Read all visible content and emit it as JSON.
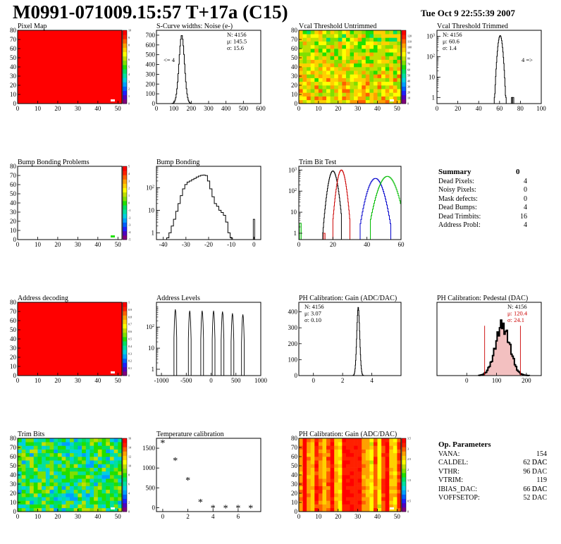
{
  "header": {
    "title": "M0991-071009.15:57 T+17a (C15)",
    "date": "Tue Oct  9 22:55:39 2007"
  },
  "summary": {
    "title": "Summary",
    "total": "0",
    "rows": [
      {
        "label": "Dead Pixels:",
        "value": "4"
      },
      {
        "label": "Noisy Pixels:",
        "value": "0"
      },
      {
        "label": "Mask defects:",
        "value": "0"
      },
      {
        "label": "Dead Bumps:",
        "value": "4"
      },
      {
        "label": "Dead Trimbits:",
        "value": "16"
      },
      {
        "label": "Address Probl:",
        "value": "4"
      }
    ]
  },
  "op_parameters": {
    "title": "Op. Parameters",
    "rows": [
      {
        "label": "VANA:",
        "value": "154 DAC"
      },
      {
        "label": "CALDEL:",
        "value": "62 DAC"
      },
      {
        "label": "VTHR:",
        "value": "96 DAC"
      },
      {
        "label": "VTRIM:",
        "value": "119 DAC"
      },
      {
        "label": "IBIAS_DAC:",
        "value": "66 DAC"
      },
      {
        "label": "VOFFSETOP:",
        "value": "52 DAC"
      }
    ]
  },
  "chart_data": [
    {
      "id": "pixel-map",
      "type": "heatmap",
      "title": "Pixel Map",
      "xlim": [
        0,
        52
      ],
      "ylim": [
        0,
        80
      ],
      "xticks": [
        0,
        10,
        20,
        30,
        40,
        50
      ],
      "yticks": [
        0,
        10,
        20,
        30,
        40,
        50,
        60,
        70,
        80
      ],
      "fill_color": "#ff0000",
      "colorbar": {
        "min": 0,
        "max": 10,
        "ticks": [
          0,
          1,
          2,
          3,
          4,
          5,
          6,
          7,
          8,
          9,
          10
        ]
      }
    },
    {
      "id": "scurve-noise",
      "type": "histogram",
      "title": "S-Curve widths: Noise (e-)",
      "xlim": [
        0,
        600
      ],
      "ylim": [
        0,
        750
      ],
      "xticks": [
        0,
        100,
        200,
        300,
        400,
        500,
        600
      ],
      "yticks": [
        0,
        100,
        200,
        300,
        400,
        500,
        600,
        700
      ],
      "stats": [
        "N: 4156",
        "μ: 145.5",
        "σ: 15.6"
      ],
      "annotation": "<= 4",
      "series": [
        {
          "color": "#000000",
          "mean": 145.5,
          "sigma": 15.6,
          "peak": 700,
          "x_from": 80,
          "x_to": 240
        }
      ]
    },
    {
      "id": "vcal-untrimmed",
      "type": "heatmap",
      "title": "Vcal Threshold Untrimmed",
      "xlim": [
        0,
        52
      ],
      "ylim": [
        0,
        80
      ],
      "xticks": [
        0,
        10,
        20,
        30,
        40,
        50
      ],
      "yticks": [
        0,
        10,
        20,
        30,
        40,
        50,
        60,
        70,
        80
      ],
      "colorbar": {
        "min": 0,
        "max": 130,
        "ticks": [
          0,
          10,
          20,
          30,
          40,
          50,
          60,
          70,
          80,
          90,
          100,
          110,
          120
        ]
      }
    },
    {
      "id": "vcal-trimmed",
      "type": "histogram",
      "title": "Vcal Threshold Trimmed",
      "log_y": true,
      "xlim": [
        0,
        100
      ],
      "ylim": [
        0.5,
        2000
      ],
      "xticks": [
        0,
        20,
        40,
        60,
        80,
        100
      ],
      "yticks_log": [
        1,
        10,
        100,
        1000
      ],
      "stats": [
        "N: 4156",
        "μ: 60.6",
        "σ:  1.4"
      ],
      "annotation": "4 =>",
      "series": [
        {
          "color": "#000000",
          "mean": 60.6,
          "sigma": 1.4,
          "peak": 1100,
          "x_from": 50,
          "x_to": 68
        }
      ],
      "extras": [
        {
          "x": 72,
          "y": 1
        },
        {
          "x": 73,
          "y": 1
        }
      ]
    },
    {
      "id": "bump-bonding-problems",
      "type": "heatmap",
      "title": "Bump Bonding Problems",
      "xlim": [
        0,
        52
      ],
      "ylim": [
        0,
        80
      ],
      "xticks": [
        0,
        10,
        20,
        30,
        40,
        50
      ],
      "yticks": [
        0,
        10,
        20,
        30,
        40,
        50,
        60,
        70,
        80
      ],
      "fill_color": "#ffffff",
      "colorbar": {
        "min": -5,
        "max": 5,
        "ticks": [
          -5,
          -4,
          -3,
          -2,
          -1,
          0,
          1,
          2,
          3,
          4,
          5
        ]
      }
    },
    {
      "id": "bump-bonding",
      "type": "histogram",
      "title": "Bump Bonding",
      "log_y": true,
      "xlim": [
        -43,
        3
      ],
      "ylim": [
        0.5,
        900
      ],
      "xticks": [
        -40,
        -30,
        -20,
        -10,
        0
      ],
      "yticks_log": [
        1,
        10,
        100
      ],
      "series": [
        {
          "color": "#000000",
          "x": [
            -38,
            -37,
            -36,
            -35,
            -34,
            -33,
            -32,
            -31,
            -30,
            -29,
            -28,
            -27,
            -26,
            -25,
            -24,
            -23,
            -22,
            -21,
            -20,
            -19,
            -18,
            -17,
            -16,
            -15,
            -14,
            -13,
            -12,
            -11,
            -10
          ],
          "y": [
            0.6,
            1,
            2,
            4,
            9,
            20,
            45,
            90,
            140,
            180,
            200,
            230,
            260,
            300,
            330,
            360,
            370,
            350,
            200,
            90,
            40,
            20,
            15,
            10,
            8,
            6,
            3,
            1,
            0.6
          ]
        }
      ],
      "extras": [
        {
          "x": 0,
          "y": 4
        }
      ]
    },
    {
      "id": "trim-bit-test",
      "type": "histogram",
      "title": "Trim Bit Test",
      "log_y": true,
      "xlim": [
        0,
        60
      ],
      "ylim": [
        0.5,
        1500
      ],
      "xticks": [
        0,
        20,
        40,
        60
      ],
      "yticks_log": [
        1,
        10,
        100,
        1000
      ],
      "series": [
        {
          "color": "#000000",
          "mean": 20,
          "sigma": 1.6,
          "peak": 900,
          "x_from": 14,
          "x_to": 25
        },
        {
          "color": "#cc0000",
          "mean": 25,
          "sigma": 1.5,
          "peak": 1000,
          "x_from": 20,
          "x_to": 30
        },
        {
          "color": "#0000cc",
          "mean": 45,
          "sigma": 2.8,
          "peak": 400,
          "x_from": 36,
          "x_to": 54
        },
        {
          "color": "#00bb00",
          "mean": 52,
          "sigma": 3.2,
          "peak": 500,
          "x_from": 42,
          "x_to": 60
        }
      ],
      "extras": [
        {
          "x": 1,
          "y": 3,
          "color": "#00bb00"
        },
        {
          "x": 15,
          "y": 1,
          "color": "#cc0000"
        }
      ]
    },
    {
      "id": "address-decoding",
      "type": "heatmap",
      "title": "Address decoding",
      "xlim": [
        0,
        52
      ],
      "ylim": [
        0,
        80
      ],
      "xticks": [
        0,
        10,
        20,
        30,
        40,
        50
      ],
      "yticks": [
        0,
        10,
        20,
        30,
        40,
        50,
        60,
        70,
        80
      ],
      "fill_color": "#ff0000",
      "colorbar": {
        "min": 0,
        "max": 1,
        "ticks": [
          0,
          0.1,
          0.2,
          0.3,
          0.4,
          0.5,
          0.6,
          0.7,
          0.8,
          0.9,
          1
        ]
      }
    },
    {
      "id": "address-levels",
      "type": "histogram",
      "title": "Address Levels",
      "log_y": true,
      "xlim": [
        -1100,
        1000
      ],
      "ylim": [
        0.5,
        1500
      ],
      "xticks": [
        -1000,
        -500,
        0,
        500,
        1000
      ],
      "yticks_log": [
        1,
        10,
        100
      ],
      "series": [
        {
          "color": "#000000",
          "peaks": [
            -720,
            -430,
            -180,
            50,
            230,
            430,
            640
          ],
          "heights": [
            700,
            600,
            600,
            600,
            550,
            450,
            400
          ],
          "width": 55
        }
      ]
    },
    {
      "id": "ph-gain",
      "type": "histogram",
      "title": "PH Calibration: Gain (ADC/DAC)",
      "xlim": [
        -1,
        6
      ],
      "ylim": [
        0,
        460
      ],
      "xticks": [
        0,
        2,
        4
      ],
      "yticks": [
        0,
        100,
        200,
        300,
        400
      ],
      "stats": [
        "N: 4156",
        "μ: 3.07",
        "σ: 0.10"
      ],
      "series": [
        {
          "color": "#000000",
          "mean": 3.07,
          "sigma": 0.1,
          "peak": 430,
          "x_from": 2.6,
          "x_to": 3.5
        }
      ]
    },
    {
      "id": "ph-pedestal",
      "type": "histogram",
      "title": "PH Calibration: Pedestal (DAC)",
      "xlim": [
        -100,
        250
      ],
      "ylim": [
        0,
        1.45
      ],
      "xticks": [
        0,
        100,
        200
      ],
      "yticks": [],
      "stats": [
        "N: 4156",
        "μ: 120.4",
        "σ: 24.1"
      ],
      "series": [
        {
          "color": "#000000",
          "mean": 120.4,
          "sigma": 24.1,
          "peak": 1,
          "x_from": 40,
          "x_to": 210
        }
      ],
      "red_lines": [
        60,
        180
      ]
    },
    {
      "id": "trim-bits",
      "type": "heatmap",
      "title": "Trim Bits",
      "xlim": [
        0,
        52
      ],
      "ylim": [
        0,
        80
      ],
      "xticks": [
        0,
        10,
        20,
        30,
        40,
        50
      ],
      "yticks": [
        0,
        10,
        20,
        30,
        40,
        50,
        60,
        70,
        80
      ],
      "colorbar": {
        "min": 0,
        "max": 16,
        "ticks": [
          0,
          2,
          4,
          6,
          8,
          10,
          12,
          14,
          16
        ]
      }
    },
    {
      "id": "temperature-calibration",
      "type": "scatter",
      "title": "Temperature calibration",
      "xlim": [
        -0.5,
        7.8
      ],
      "ylim": [
        -100,
        1750
      ],
      "xticks": [
        0,
        2,
        4,
        6
      ],
      "yticks": [
        0,
        500,
        1000,
        1500
      ],
      "marker": "*",
      "x": [
        0,
        1,
        2,
        3,
        4,
        5,
        6,
        7
      ],
      "y": [
        1640,
        1200,
        700,
        150,
        0,
        0,
        0,
        0
      ]
    },
    {
      "id": "ph-gain-map",
      "type": "heatmap",
      "title": "PH Calibration: Gain (ADC/DAC)",
      "xlim": [
        0,
        52
      ],
      "ylim": [
        0,
        80
      ],
      "xticks": [
        0,
        10,
        20,
        30,
        40,
        50
      ],
      "yticks": [
        0,
        10,
        20,
        30,
        40,
        50,
        60,
        70,
        80
      ],
      "colorbar": {
        "min": 0,
        "max": 3.5,
        "ticks": [
          0,
          0.5,
          1,
          1.5,
          2,
          2.5,
          3,
          3.5
        ]
      }
    }
  ]
}
